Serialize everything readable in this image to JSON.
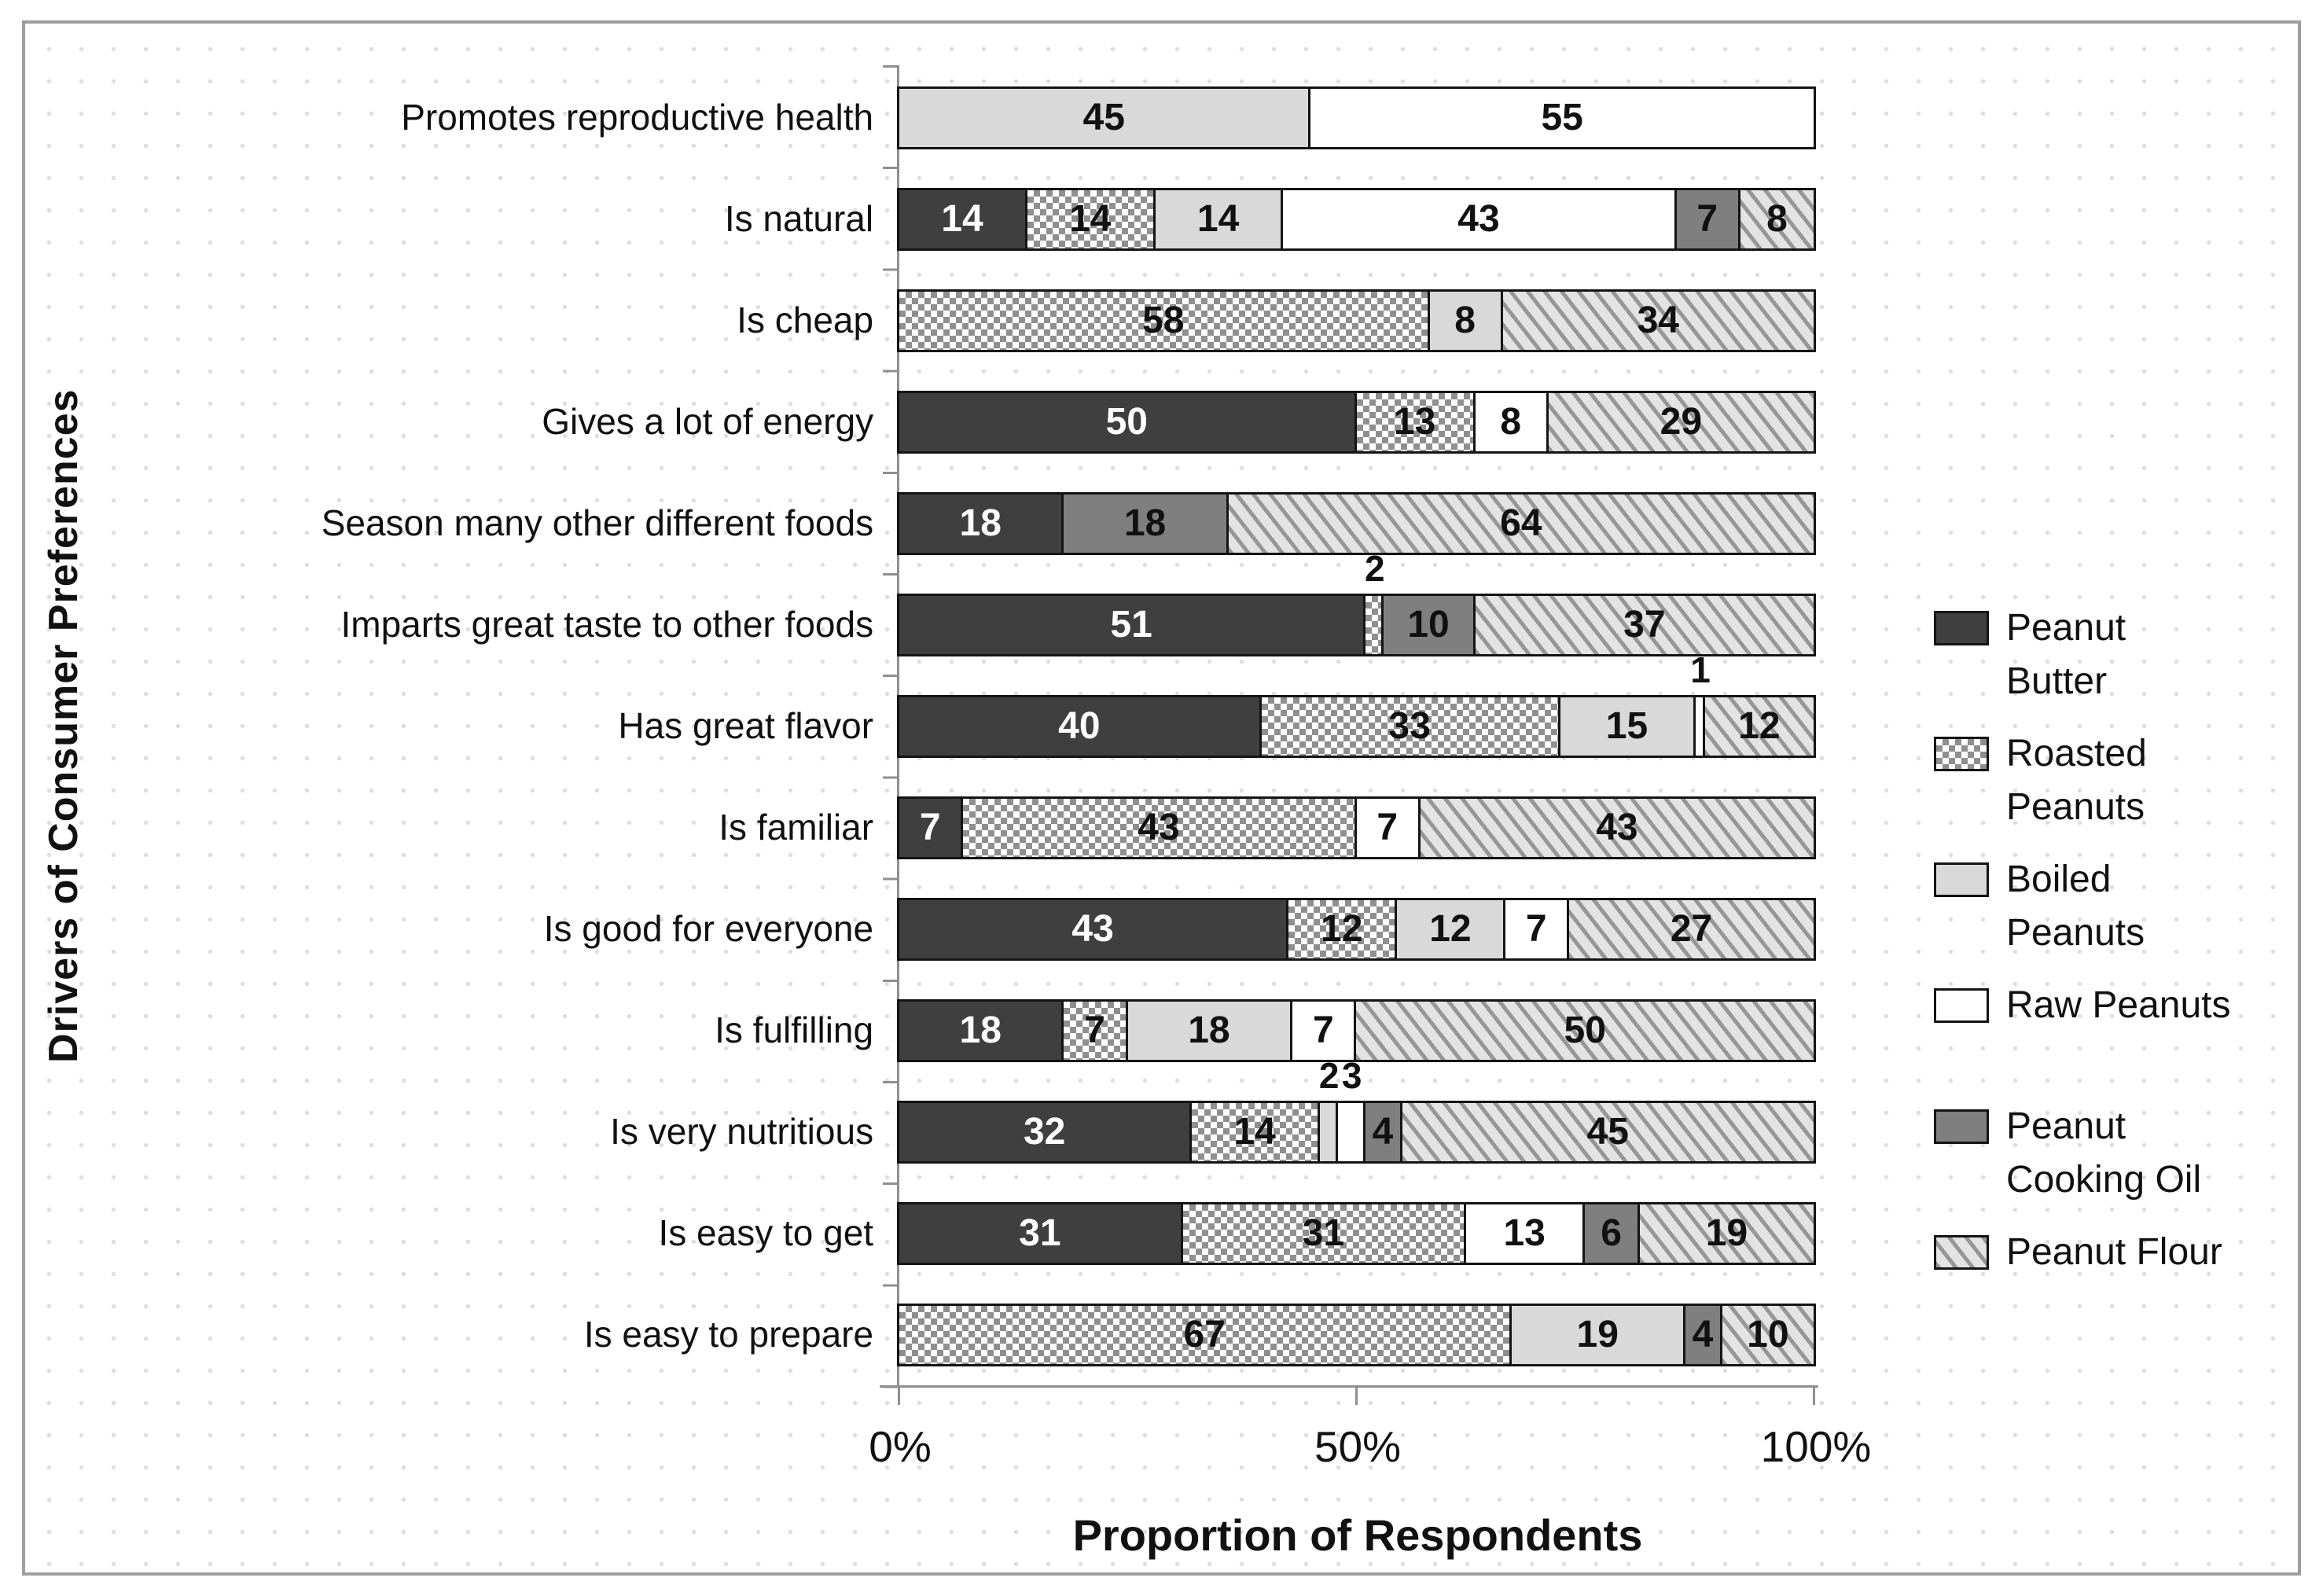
{
  "chart_data": {
    "type": "bar",
    "orientation": "horizontal",
    "stacked": true,
    "xlabel": "Proportion of Respondents",
    "ylabel": "Drivers of Consumer Preferences",
    "x_ticks": [
      "0%",
      "50%",
      "100%"
    ],
    "xlim_percent": [
      0,
      100
    ],
    "legend_position": "right",
    "series": [
      {
        "key": "peanut_butter",
        "label_lines": [
          "Peanut",
          "Butter"
        ],
        "swatch": "dark-solid",
        "color": "#3f3f3f"
      },
      {
        "key": "roasted_peanuts",
        "label_lines": [
          "Roasted",
          "Peanuts"
        ],
        "swatch": "checker-pattern",
        "color": "#8f8f8f"
      },
      {
        "key": "boiled_peanuts",
        "label_lines": [
          "Boiled",
          "Peanuts"
        ],
        "swatch": "light-solid",
        "color": "#d9d9d9"
      },
      {
        "key": "raw_peanuts",
        "label_lines": [
          "Raw Peanuts"
        ],
        "swatch": "white-solid",
        "color": "#ffffff"
      },
      {
        "key": "peanut_cooking_oil",
        "label_lines": [
          "Peanut",
          "Cooking Oil"
        ],
        "swatch": "medium-solid",
        "color": "#7f7f7f",
        "gap_before": true
      },
      {
        "key": "peanut_flour",
        "label_lines": [
          "Peanut Flour"
        ],
        "swatch": "diagonal-hatch",
        "color": "#e3e3e3"
      }
    ],
    "rows": [
      {
        "category": "Promotes reproductive health",
        "segments": [
          {
            "key": "boiled_peanuts",
            "value": 45
          },
          {
            "key": "raw_peanuts",
            "value": 55
          }
        ]
      },
      {
        "category": "Is natural",
        "segments": [
          {
            "key": "peanut_butter",
            "value": 14
          },
          {
            "key": "roasted_peanuts",
            "value": 14
          },
          {
            "key": "boiled_peanuts",
            "value": 14
          },
          {
            "key": "raw_peanuts",
            "value": 43
          },
          {
            "key": "peanut_cooking_oil",
            "value": 7
          },
          {
            "key": "peanut_flour",
            "value": 8
          }
        ]
      },
      {
        "category": "Is cheap",
        "segments": [
          {
            "key": "roasted_peanuts",
            "value": 58
          },
          {
            "key": "boiled_peanuts",
            "value": 8
          },
          {
            "key": "peanut_flour",
            "value": 34
          }
        ]
      },
      {
        "category": "Gives a lot of energy",
        "segments": [
          {
            "key": "peanut_butter",
            "value": 50
          },
          {
            "key": "roasted_peanuts",
            "value": 13
          },
          {
            "key": "raw_peanuts",
            "value": 8
          },
          {
            "key": "peanut_flour",
            "value": 29
          }
        ]
      },
      {
        "category": "Season many other different foods",
        "segments": [
          {
            "key": "peanut_butter",
            "value": 18
          },
          {
            "key": "peanut_cooking_oil",
            "value": 18
          },
          {
            "key": "peanut_flour",
            "value": 64
          }
        ]
      },
      {
        "category": "Imparts great taste to other foods",
        "segments": [
          {
            "key": "peanut_butter",
            "value": 51
          },
          {
            "key": "roasted_peanuts",
            "value": 2,
            "label_above": true
          },
          {
            "key": "peanut_cooking_oil",
            "value": 10
          },
          {
            "key": "peanut_flour",
            "value": 37
          }
        ]
      },
      {
        "category": "Has great flavor",
        "segments": [
          {
            "key": "peanut_butter",
            "value": 40
          },
          {
            "key": "roasted_peanuts",
            "value": 33
          },
          {
            "key": "boiled_peanuts",
            "value": 15
          },
          {
            "key": "raw_peanuts",
            "value": 1,
            "label_above": true
          },
          {
            "key": "peanut_flour",
            "value": 12
          }
        ]
      },
      {
        "category": "Is familiar",
        "segments": [
          {
            "key": "peanut_butter",
            "value": 7
          },
          {
            "key": "roasted_peanuts",
            "value": 43
          },
          {
            "key": "raw_peanuts",
            "value": 7
          },
          {
            "key": "peanut_flour",
            "value": 43
          }
        ]
      },
      {
        "category": "Is good for everyone",
        "segments": [
          {
            "key": "peanut_butter",
            "value": 43
          },
          {
            "key": "roasted_peanuts",
            "value": 12
          },
          {
            "key": "boiled_peanuts",
            "value": 12
          },
          {
            "key": "raw_peanuts",
            "value": 7
          },
          {
            "key": "peanut_flour",
            "value": 27
          }
        ]
      },
      {
        "category": "Is fulfilling",
        "segments": [
          {
            "key": "peanut_butter",
            "value": 18
          },
          {
            "key": "roasted_peanuts",
            "value": 7
          },
          {
            "key": "boiled_peanuts",
            "value": 18
          },
          {
            "key": "raw_peanuts",
            "value": 7
          },
          {
            "key": "peanut_flour",
            "value": 50
          }
        ]
      },
      {
        "category": "Is very nutritious",
        "segments": [
          {
            "key": "peanut_butter",
            "value": 32
          },
          {
            "key": "roasted_peanuts",
            "value": 14
          },
          {
            "key": "boiled_peanuts",
            "value": 2,
            "label_above": true
          },
          {
            "key": "raw_peanuts",
            "value": 3,
            "label_above": true
          },
          {
            "key": "peanut_cooking_oil",
            "value": 4
          },
          {
            "key": "peanut_flour",
            "value": 45
          }
        ]
      },
      {
        "category": "Is easy to get",
        "segments": [
          {
            "key": "peanut_butter",
            "value": 31
          },
          {
            "key": "roasted_peanuts",
            "value": 31
          },
          {
            "key": "raw_peanuts",
            "value": 13
          },
          {
            "key": "peanut_cooking_oil",
            "value": 6
          },
          {
            "key": "peanut_flour",
            "value": 19
          }
        ]
      },
      {
        "category": "Is easy to prepare",
        "segments": [
          {
            "key": "roasted_peanuts",
            "value": 67
          },
          {
            "key": "boiled_peanuts",
            "value": 19
          },
          {
            "key": "peanut_cooking_oil",
            "value": 4
          },
          {
            "key": "peanut_flour",
            "value": 10
          }
        ]
      }
    ]
  },
  "colors": {
    "text": "#111111",
    "axis": "#8f8f8f",
    "frame_border": "#9e9e9e",
    "bar_border": "#141414",
    "peanut_butter": "#3f3f3f",
    "roasted_peanuts_pattern": "#8f8f8f",
    "boiled_peanuts": "#d9d9d9",
    "raw_peanuts": "#ffffff",
    "peanut_cooking_oil": "#7f7f7f",
    "peanut_flour_bg": "#e3e3e3",
    "peanut_flour_hatch": "#969696"
  }
}
